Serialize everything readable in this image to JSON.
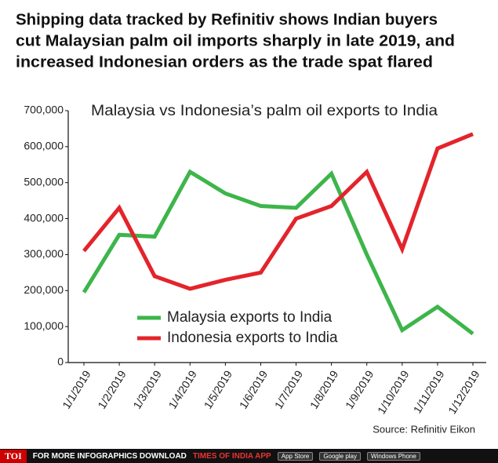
{
  "chart_data": {
    "type": "line",
    "title": [
      "Shipping data tracked by Refinitiv shows Indian buyers",
      "cut Malaysian palm oil imports sharply in late 2019, and",
      "increased Indonesian orders as the trade spat flared"
    ],
    "subtitle": "Malaysia vs Indonesia’s palm oil exports to India",
    "source": "Source: Refinitiv Eikon",
    "categories": [
      "1/1/2019",
      "1/2/2019",
      "1/3/2019",
      "1/4/2019",
      "1/5/2019",
      "1/6/2019",
      "1/7/2019",
      "1/8/2019",
      "1/9/2019",
      "1/10/2019",
      "1/11/2019",
      "1/12/2019"
    ],
    "series": [
      {
        "name": "Malaysia exports to India",
        "color": "#3db54a",
        "values": [
          195000,
          355000,
          350000,
          530000,
          470000,
          435000,
          430000,
          525000,
          300000,
          90000,
          155000,
          80000
        ]
      },
      {
        "name": "Indonesia exports to India",
        "color": "#e3242b",
        "values": [
          310000,
          430000,
          240000,
          205000,
          230000,
          250000,
          400000,
          435000,
          530000,
          315000,
          595000,
          635000
        ]
      }
    ],
    "ylim": [
      0,
      700000
    ],
    "yticks": [
      0,
      {
        "value": 100000,
        "label": "100,000"
      },
      {
        "value": 200000,
        "label": "200,000"
      },
      {
        "value": 300000,
        "label": "300,000"
      },
      {
        "value": 400000,
        "label": "400,000"
      },
      {
        "value": 500000,
        "label": "500,000"
      },
      {
        "value": 600000,
        "label": "600,000"
      },
      {
        "value": 700000,
        "label": "700,000"
      }
    ],
    "grid": false,
    "legend": "lower center"
  },
  "footer": {
    "brand": "TOI",
    "text": "FOR MORE  INFOGRAPHICS DOWNLOAD",
    "app": "TIMES OF INDIA APP",
    "badges": [
      "App Store",
      "Google play",
      "Windows Phone"
    ]
  }
}
